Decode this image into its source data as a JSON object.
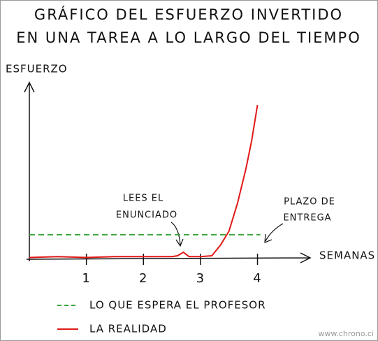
{
  "chart_data": {
    "type": "line",
    "title_lines": [
      "GRÁFICO DEL ESFUERZO INVERTIDO",
      "EN UNA TAREA A LO LARGO DEL TIEMPO"
    ],
    "y_label": "ESFUERZO",
    "x_label": "SEMANAS",
    "xlim": [
      0,
      4.9
    ],
    "xticks": [
      1,
      2,
      3,
      4
    ],
    "ylim": [
      0,
      100
    ],
    "series": [
      {
        "name": "LO QUE ESPERA EL PROFESOR",
        "color": "#3aa53a",
        "dashed": true,
        "x": [
          0,
          4.05
        ],
        "values": [
          14,
          14
        ]
      },
      {
        "name": "LA REALIDAD",
        "color": "#e01818",
        "dashed": false,
        "x": [
          0,
          0.5,
          1,
          1.5,
          2,
          2.5,
          2.6,
          2.7,
          2.8,
          3.0,
          3.2,
          3.35,
          3.5,
          3.65,
          3.8,
          3.9,
          4.0
        ],
        "values": [
          1,
          1.5,
          1,
          1.5,
          1.5,
          1.5,
          2,
          4,
          1.5,
          1.5,
          2,
          8,
          16,
          32,
          52,
          68,
          88
        ]
      }
    ],
    "annotations": [
      {
        "lines": [
          "LEES EL",
          "ENUNCIADO"
        ]
      },
      {
        "lines": [
          "PLAZO DE",
          "ENTREGA"
        ]
      }
    ],
    "watermark": "www.chrono.ci"
  }
}
